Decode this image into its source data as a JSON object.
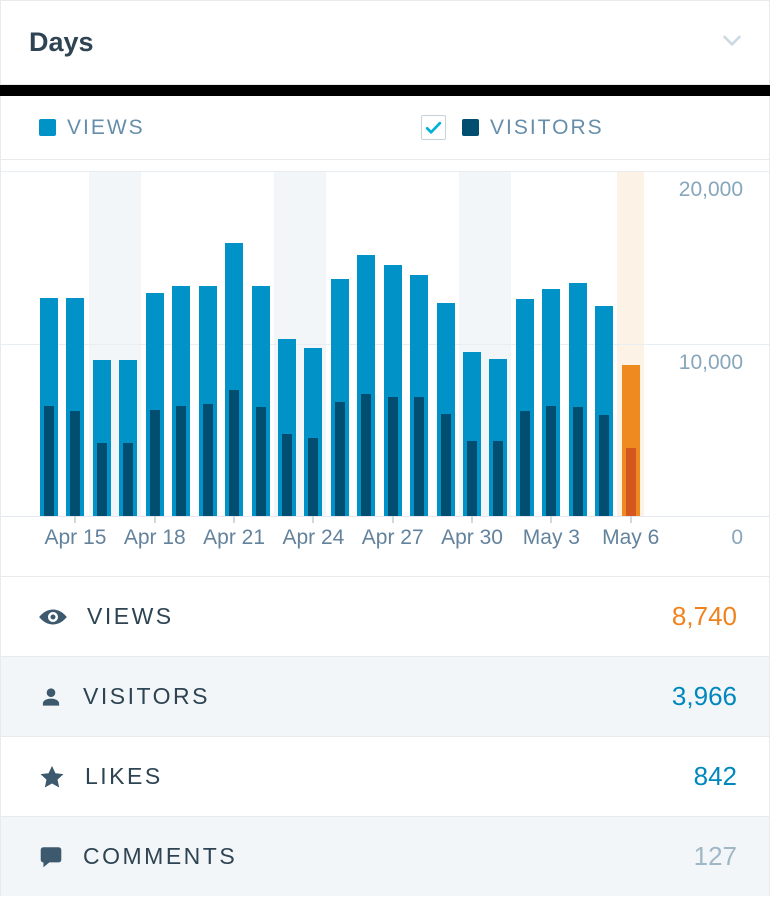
{
  "header": {
    "title": "Days"
  },
  "legend": {
    "views": {
      "label": "VIEWS",
      "color": "#0193c8"
    },
    "visitors": {
      "label": "VISITORS",
      "color": "#014e70",
      "checked": true
    }
  },
  "chart_data": {
    "type": "bar",
    "x": [
      "Apr 14",
      "Apr 15",
      "Apr 16",
      "Apr 17",
      "Apr 18",
      "Apr 19",
      "Apr 20",
      "Apr 21",
      "Apr 22",
      "Apr 23",
      "Apr 24",
      "Apr 25",
      "Apr 26",
      "Apr 27",
      "Apr 28",
      "Apr 29",
      "Apr 30",
      "May 1",
      "May 2",
      "May 3",
      "May 4",
      "May 5",
      "May 6"
    ],
    "series": [
      {
        "name": "VIEWS",
        "color": "#0193c8",
        "selected_color": "#ef8a21",
        "values": [
          12650,
          12650,
          9050,
          9050,
          12950,
          13350,
          13350,
          15800,
          13350,
          10280,
          9740,
          13760,
          15150,
          14570,
          13950,
          12370,
          9500,
          9080,
          12560,
          13140,
          13530,
          12180,
          8740
        ]
      },
      {
        "name": "VISITORS",
        "color": "#014e70",
        "selected_color": "#d4571f",
        "values": [
          6400,
          6100,
          4220,
          4220,
          6170,
          6400,
          6490,
          7300,
          6310,
          4780,
          4550,
          6600,
          7070,
          6870,
          6870,
          5920,
          4370,
          4370,
          6060,
          6400,
          6310,
          5860,
          3966
        ]
      }
    ],
    "ylim": [
      0,
      20000
    ],
    "yticks": [
      {
        "value": 20000,
        "label": "20,000"
      },
      {
        "value": 10000,
        "label": "10,000"
      },
      {
        "value": 0,
        "label": "0"
      }
    ],
    "xtick_indices": [
      1,
      4,
      7,
      10,
      13,
      16,
      19,
      22
    ],
    "weekend_band_indices": [
      [
        2,
        3
      ],
      [
        9,
        10
      ],
      [
        16,
        17
      ]
    ],
    "selected_index": 22,
    "grid_on": true,
    "colors": {
      "weekend_band": "#f3f6f8",
      "selected_band": "#fcf2e6",
      "gridline": "#e9eef3",
      "baseline": "#e2e8ee"
    },
    "title": "",
    "xlabel": "",
    "ylabel": ""
  },
  "summary": {
    "rows": [
      {
        "id": "views",
        "label": "VIEWS",
        "value": "8,740",
        "value_color": "#f0821e",
        "icon": "eye-icon"
      },
      {
        "id": "visitors",
        "label": "VISITORS",
        "value": "3,966",
        "value_color": "#0087be",
        "icon": "user-icon"
      },
      {
        "id": "likes",
        "label": "LIKES",
        "value": "842",
        "value_color": "#0087be",
        "icon": "star-icon"
      },
      {
        "id": "comments",
        "label": "COMMENTS",
        "value": "127",
        "value_color": "#9fb7c6",
        "icon": "comment-icon"
      }
    ]
  }
}
